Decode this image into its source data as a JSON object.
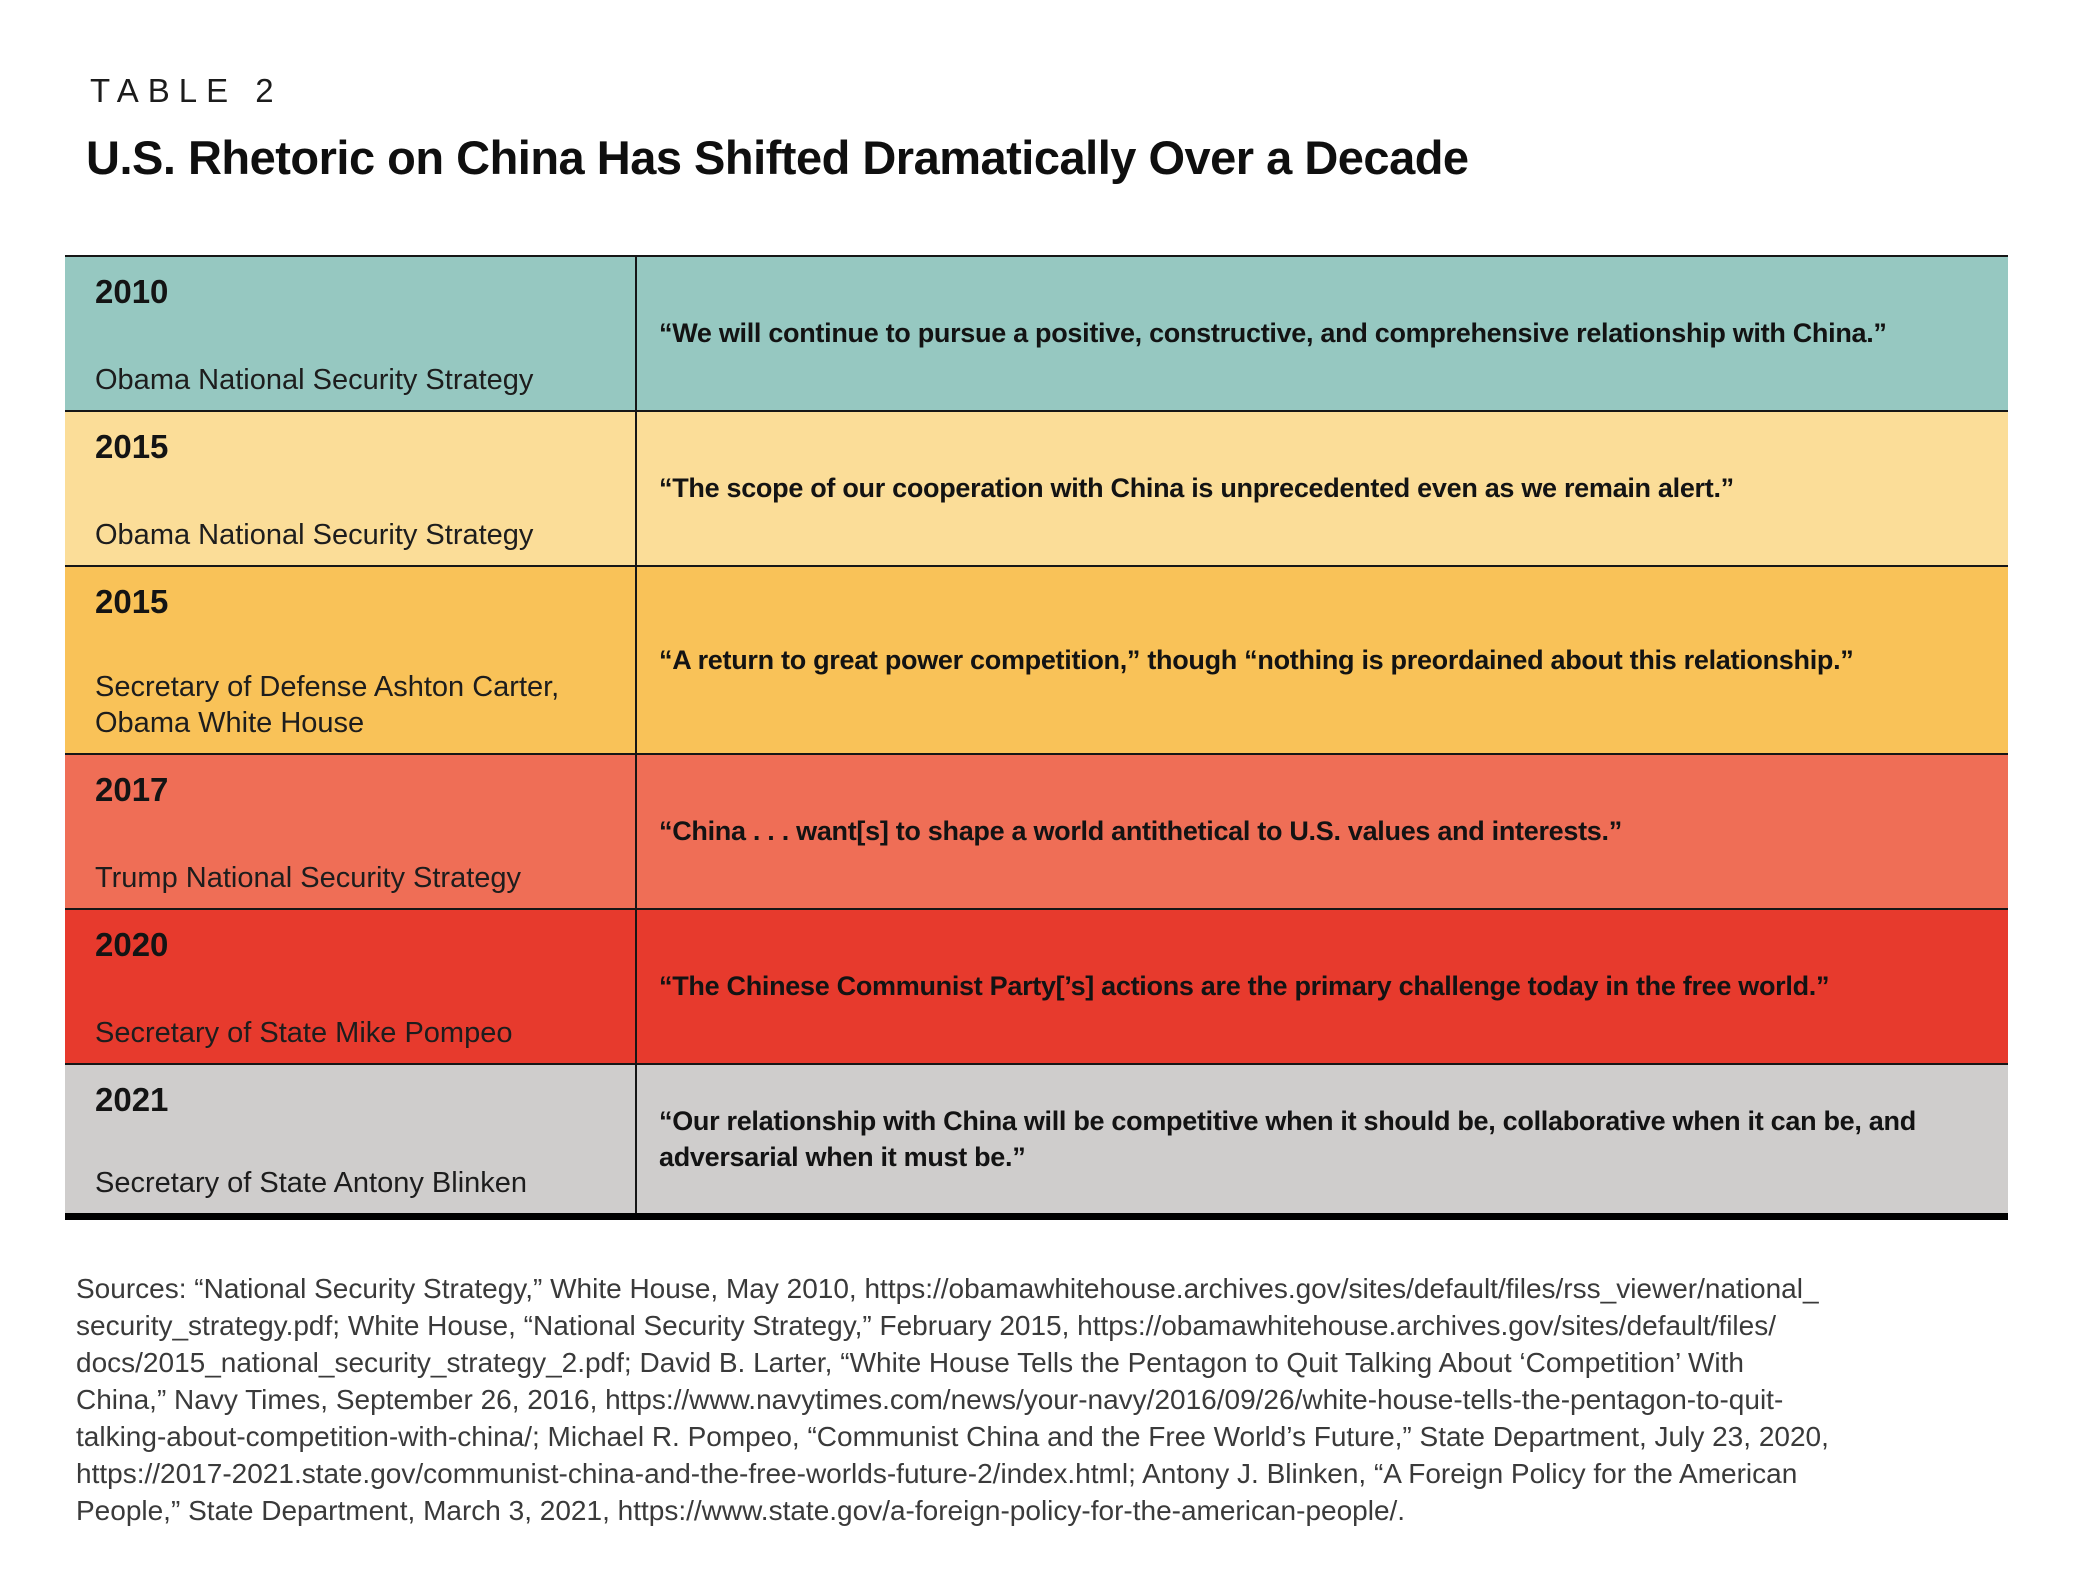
{
  "header": {
    "kicker": "TABLE 2",
    "title": "U.S. Rhetoric on China Has Shifted Dramatically Over a Decade"
  },
  "table": {
    "columns": [
      "year_and_source",
      "quote"
    ],
    "border_color": "#161616",
    "rows": [
      {
        "year": "2010",
        "source": "Obama National Security Strategy",
        "quote": "“We will continue to pursue a positive, constructive, and comprehensive relationship with China.”",
        "color": "#96c8c1"
      },
      {
        "year": "2015",
        "source": "Obama National Security Strategy",
        "quote": "“The scope of our cooperation with China is unprecedented even as we remain alert.”",
        "color": "#fbdd98"
      },
      {
        "year": "2015",
        "source": "Secretary of Defense Ashton Carter, Obama White House",
        "quote": "“A return to great power competition,” though “nothing is preordained about this relationship.”",
        "color": "#f9c258"
      },
      {
        "year": "2017",
        "source": "Trump National Security Strategy",
        "quote": "“China . . . want[s] to shape a world antithetical to U.S. values and interests.”",
        "color": "#ef6e56"
      },
      {
        "year": "2020",
        "source": "Secretary of State Mike Pompeo",
        "quote": "“The Chinese Communist Party[’s] actions are the primary challenge today in the free world.”",
        "color": "#e73a2d"
      },
      {
        "year": "2021",
        "source": "Secretary of State Antony Blinken",
        "quote": "“Our relationship with China will be competitive when it should be, collaborative when it can be, and adversarial when it must be.”",
        "color": "#cfcdcc"
      }
    ]
  },
  "sources": {
    "lines": [
      "Sources: “National Security Strategy,” White House, May 2010, https://obamawhitehouse.archives.gov/sites/default/files/rss_viewer/national_",
      "security_strategy.pdf; White House, “National Security Strategy,” February 2015, https://obamawhitehouse.archives.gov/sites/default/files/",
      "docs/2015_national_security_strategy_2.pdf; David B. Larter, “White House Tells the Pentagon to Quit Talking About ‘Competition’ With",
      "China,” Navy Times, September 26, 2016, https://www.navytimes.com/news/your-navy/2016/09/26/white-house-tells-the-pentagon-to-quit-",
      "talking-about-competition-with-china/; Michael R. Pompeo, “Communist China and the Free World’s Future,” State Department, July 23, 2020,",
      "https://2017-2021.state.gov/communist-china-and-the-free-worlds-future-2/index.html; Antony J. Blinken, “A Foreign Policy for the American",
      "People,” State Department, March 3, 2021, https://www.state.gov/a-foreign-policy-for-the-american-people/."
    ]
  }
}
